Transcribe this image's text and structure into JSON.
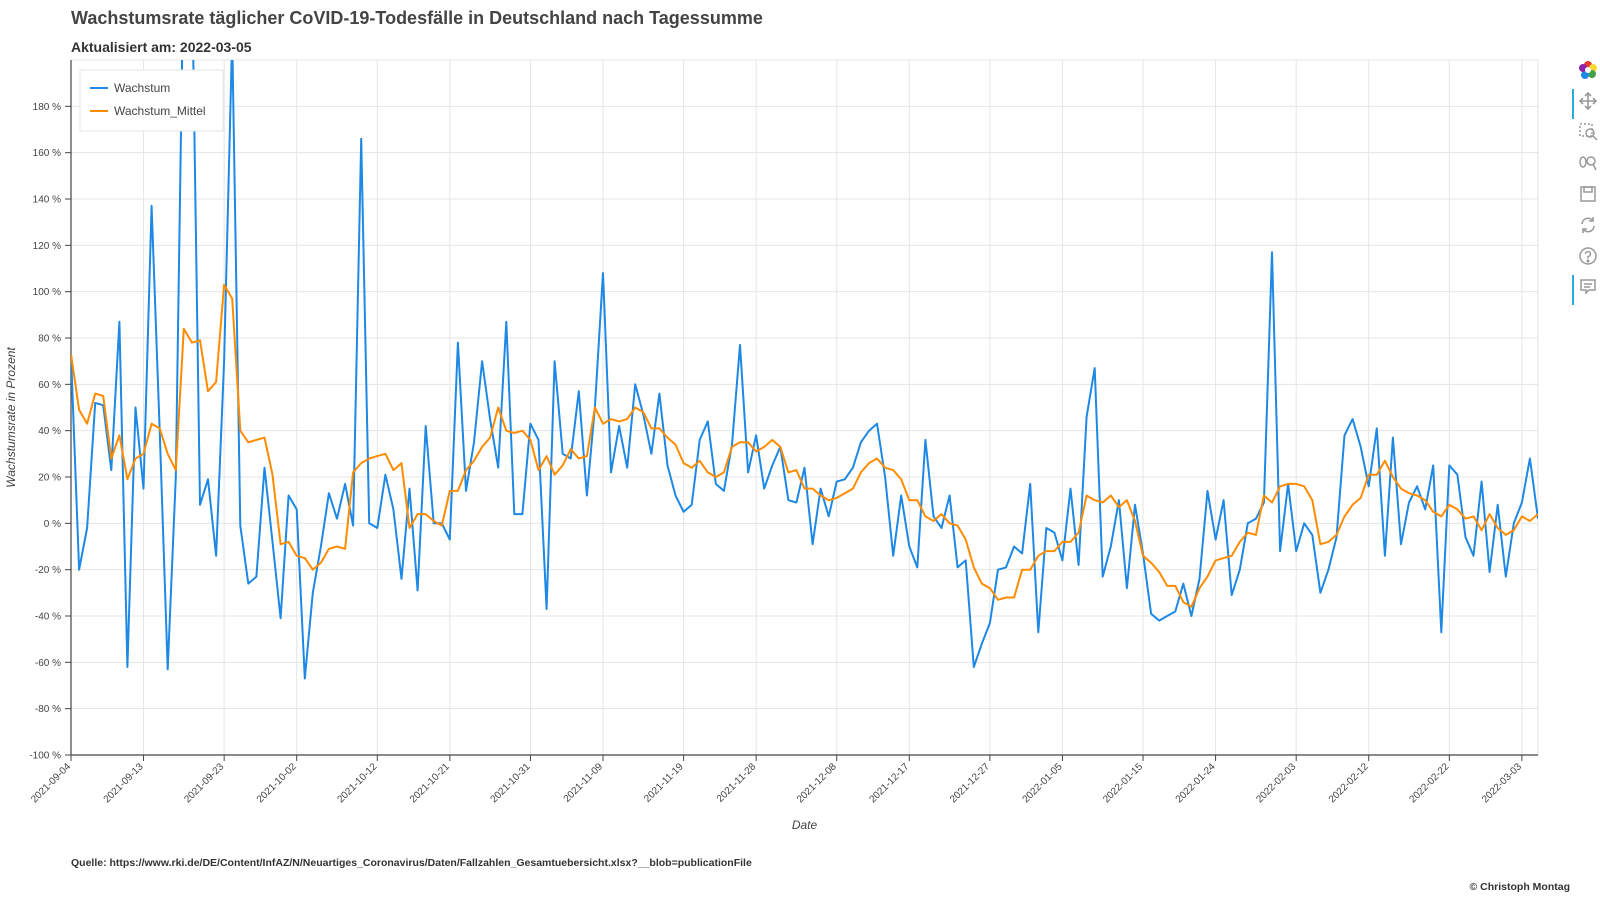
{
  "header": {
    "title": "Wachstumsrate täglicher CoVID-19-Todesfälle in Deutschland nach Tagessumme",
    "subtitle": "Aktualisiert am: 2022-03-05"
  },
  "footer": {
    "source": "Quelle: https://www.rki.de/DE/Content/InfAZ/N/Neuartiges_Coronavirus/Daten/Fallzahlen_Gesamtuebersicht.xlsx?__blob=publicationFile",
    "copyright": "© Christoph Montag"
  },
  "toolbar": {
    "tools": [
      "bokeh-logo-icon",
      "pan-icon",
      "box-zoom-icon",
      "wheel-zoom-icon",
      "save-icon",
      "reset-icon",
      "help-icon",
      "hover-icon"
    ]
  },
  "chart_data": {
    "type": "line",
    "xlabel": "Date",
    "ylabel": "Wachstumsrate in Prozent",
    "x_start": "2021-09-04",
    "x_end": "2022-03-05",
    "x_ticks": [
      "2021-09-04",
      "2021-09-13",
      "2021-09-23",
      "2021-10-02",
      "2021-10-12",
      "2021-10-21",
      "2021-10-31",
      "2021-11-09",
      "2021-11-19",
      "2021-11-28",
      "2021-12-08",
      "2021-12-17",
      "2021-12-27",
      "2022-01-05",
      "2022-01-15",
      "2022-01-24",
      "2022-02-03",
      "2022-02-12",
      "2022-02-22",
      "2022-03-03"
    ],
    "y_ticks": [
      "180 %",
      "160 %",
      "140 %",
      "120 %",
      "100 %",
      "80 %",
      "60 %",
      "40 %",
      "20 %",
      "0 %",
      "-20 %",
      "-40 %",
      "-60 %",
      "-80 %",
      "-100 %"
    ],
    "ylim": [
      -100,
      200
    ],
    "grid": true,
    "legend_position": "top-left",
    "colors": {
      "Wachstum": "#1e88e5",
      "Wachstum_Mittel": "#ff8c00"
    },
    "series": [
      {
        "name": "Wachstum",
        "values": [
          73,
          -20,
          -2,
          52,
          51,
          23,
          87,
          -62,
          50,
          15,
          137,
          40,
          -63,
          20,
          250,
          240,
          8,
          19,
          -14,
          70,
          210,
          -1,
          -26,
          -23,
          24,
          -8,
          -41,
          12,
          6,
          -67,
          -30,
          -10,
          13,
          2,
          17,
          -1,
          166,
          0,
          -2,
          21,
          6,
          -24,
          15,
          -29,
          42,
          0,
          0,
          -7,
          78,
          14,
          35,
          70,
          45,
          24,
          87,
          4,
          4,
          43,
          36,
          -37,
          70,
          30,
          28,
          57,
          12,
          50,
          108,
          22,
          42,
          24,
          60,
          47,
          30,
          56,
          25,
          12,
          5,
          8,
          36,
          44,
          17,
          14,
          34,
          77,
          22,
          38,
          15,
          25,
          33,
          10,
          9,
          24,
          -9,
          15,
          3,
          18,
          19,
          24,
          35,
          40,
          43,
          20,
          -14,
          12,
          -10,
          -19,
          36,
          3,
          -2,
          12,
          -19,
          -16,
          -62,
          -52,
          -43,
          -20,
          -19,
          -10,
          -13,
          17,
          -47,
          -2,
          -4,
          -16,
          15,
          -18,
          46,
          67,
          -23,
          -10,
          10,
          -28,
          8,
          -13,
          -39,
          -42,
          -40,
          -38,
          -26,
          -40,
          -24,
          14,
          -7,
          10,
          -31,
          -20,
          0,
          2,
          9,
          117,
          -12,
          17,
          -12,
          0,
          -5,
          -30,
          -20,
          -6,
          38,
          45,
          33,
          16,
          41,
          -14,
          37,
          -9,
          9,
          16,
          6,
          25,
          -47,
          25,
          21,
          -6,
          -14,
          18,
          -21,
          8,
          -23,
          0,
          9,
          28,
          2
        ]
      },
      {
        "name": "Wachstum_Mittel",
        "values": [
          73,
          49,
          43,
          56,
          55,
          28,
          38,
          19,
          28,
          30,
          43,
          41,
          30,
          23,
          84,
          78,
          79,
          57,
          61,
          103,
          97,
          40,
          35,
          36,
          37,
          21,
          -9,
          -8,
          -14,
          -15,
          -20,
          -17,
          -11,
          -10,
          -11,
          22,
          26,
          28,
          29,
          30,
          23,
          26,
          -2,
          4,
          4,
          1,
          -1,
          14,
          14,
          23,
          27,
          33,
          37,
          50,
          40,
          39,
          40,
          36,
          23,
          29,
          21,
          25,
          32,
          28,
          29,
          50,
          43,
          45,
          44,
          45,
          50,
          48,
          41,
          41,
          37,
          34,
          26,
          24,
          27,
          22,
          20,
          22,
          33,
          35,
          35,
          31,
          33,
          36,
          33,
          22,
          23,
          15,
          15,
          12,
          10,
          11,
          13,
          15,
          22,
          26,
          28,
          24,
          23,
          19,
          10,
          10,
          3,
          1,
          4,
          0,
          -1,
          -7,
          -19,
          -26,
          -28,
          -33,
          -32,
          -32,
          -20,
          -20,
          -14,
          -12,
          -12,
          -8,
          -8,
          -4,
          12,
          10,
          9,
          12,
          7,
          10,
          1,
          -14,
          -17,
          -21,
          -27,
          -27,
          -34,
          -36,
          -28,
          -23,
          -16,
          -15,
          -14,
          -8,
          -4,
          -5,
          12,
          9,
          16,
          17,
          17,
          16,
          10,
          -9,
          -8,
          -5,
          3,
          8,
          11,
          21,
          21,
          27,
          20,
          15,
          13,
          12,
          10,
          5,
          3,
          8,
          6,
          2,
          3,
          -3,
          4,
          -2,
          -5,
          -3,
          3,
          1,
          4
        ]
      }
    ]
  }
}
